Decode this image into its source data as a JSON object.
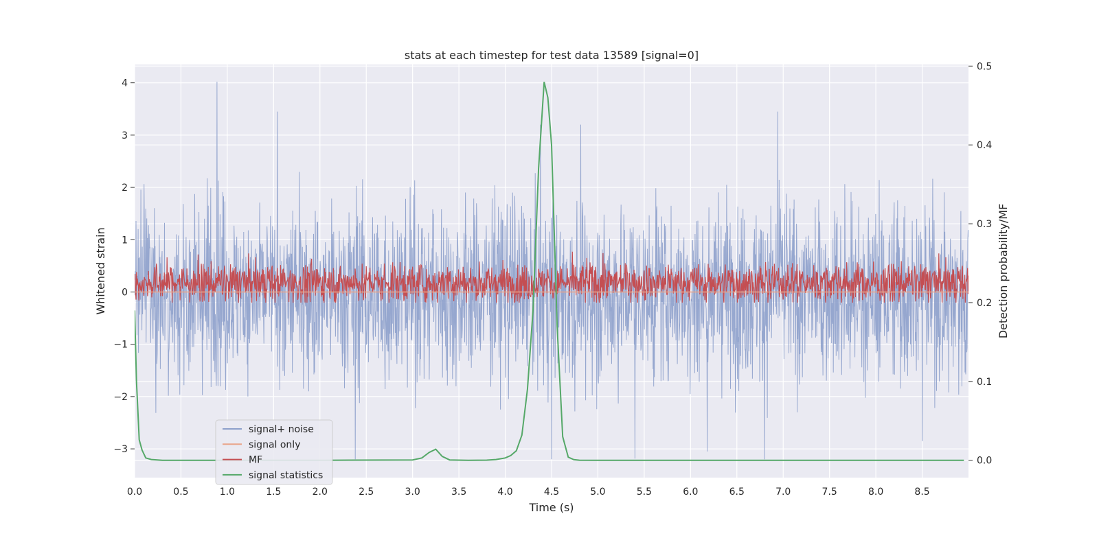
{
  "chart_data": {
    "type": "line",
    "title": "stats at each timestep for test data 13589 [signal=0]",
    "xlabel": "Time (s)",
    "ylabel": "Whitened strain",
    "ylabel_right": "Detection probability/MF",
    "xlim": [
      0.0,
      9.0
    ],
    "ylim": [
      -3.55,
      4.35
    ],
    "ylim_right": [
      -0.022,
      0.502
    ],
    "x_ticks": [
      "0.0",
      "0.5",
      "1.0",
      "1.5",
      "2.0",
      "2.5",
      "3.0",
      "3.5",
      "4.0",
      "4.5",
      "5.0",
      "5.5",
      "6.0",
      "6.5",
      "7.0",
      "7.5",
      "8.0",
      "8.5"
    ],
    "y_ticks": [
      "4",
      "3",
      "2",
      "1",
      "0",
      "−1",
      "−2",
      "−3"
    ],
    "y_ticks_right": [
      "0.5",
      "0.4",
      "0.3",
      "0.2",
      "0.1",
      "0.0"
    ],
    "grid": true,
    "legend": {
      "placement": "lower-left",
      "entries": [
        {
          "label": "signal+ noise",
          "color": "#8da0cb"
        },
        {
          "label": "signal only",
          "color": "#e9a48a"
        },
        {
          "label": "MF",
          "color": "#c44e52"
        },
        {
          "label": "signal statistics",
          "color": "#55a868"
        }
      ]
    },
    "series": [
      {
        "name": "signal+ noise",
        "axis": "left",
        "color": "#8da0cb",
        "description": "whitened strain noise, roughly ±1.5 with spikes",
        "notable_peaks": [
          {
            "x": 0.89,
            "y": 4.02
          },
          {
            "x": 1.54,
            "y": 3.45
          },
          {
            "x": 6.94,
            "y": 3.45
          },
          {
            "x": 2.38,
            "y": -3.2
          },
          {
            "x": 6.18,
            "y": -3.05
          },
          {
            "x": 8.5,
            "y": -2.85
          }
        ]
      },
      {
        "name": "signal only",
        "axis": "left",
        "color": "#e9a48a",
        "x": [
          0.0,
          9.0
        ],
        "y": [
          0.0,
          0.0
        ]
      },
      {
        "name": "MF",
        "axis": "right",
        "color": "#c44e52",
        "description": "matched-filter output fluctuating around 0.225, range about 0.2 to 0.27"
      },
      {
        "name": "signal statistics",
        "axis": "right",
        "color": "#55a868",
        "x": [
          0.0,
          0.02,
          0.05,
          0.08,
          0.12,
          0.18,
          0.3,
          1.0,
          2.0,
          3.0,
          3.1,
          3.18,
          3.25,
          3.32,
          3.4,
          3.6,
          3.8,
          3.9,
          4.0,
          4.06,
          4.12,
          4.18,
          4.24,
          4.3,
          4.36,
          4.42,
          4.46,
          4.5,
          4.56,
          4.62,
          4.68,
          4.74,
          4.8,
          5.0,
          6.0,
          7.0,
          8.0,
          8.95
        ],
        "y": [
          0.19,
          0.1,
          0.026,
          0.013,
          0.003,
          0.001,
          0.0,
          0.0,
          0.0,
          0.0005,
          0.003,
          0.01,
          0.014,
          0.005,
          0.0005,
          0.0,
          0.0002,
          0.001,
          0.003,
          0.006,
          0.012,
          0.032,
          0.09,
          0.19,
          0.37,
          0.48,
          0.46,
          0.4,
          0.17,
          0.03,
          0.004,
          0.0008,
          0.0001,
          0.0,
          0.0,
          0.0,
          0.0,
          0.0
        ]
      }
    ]
  }
}
